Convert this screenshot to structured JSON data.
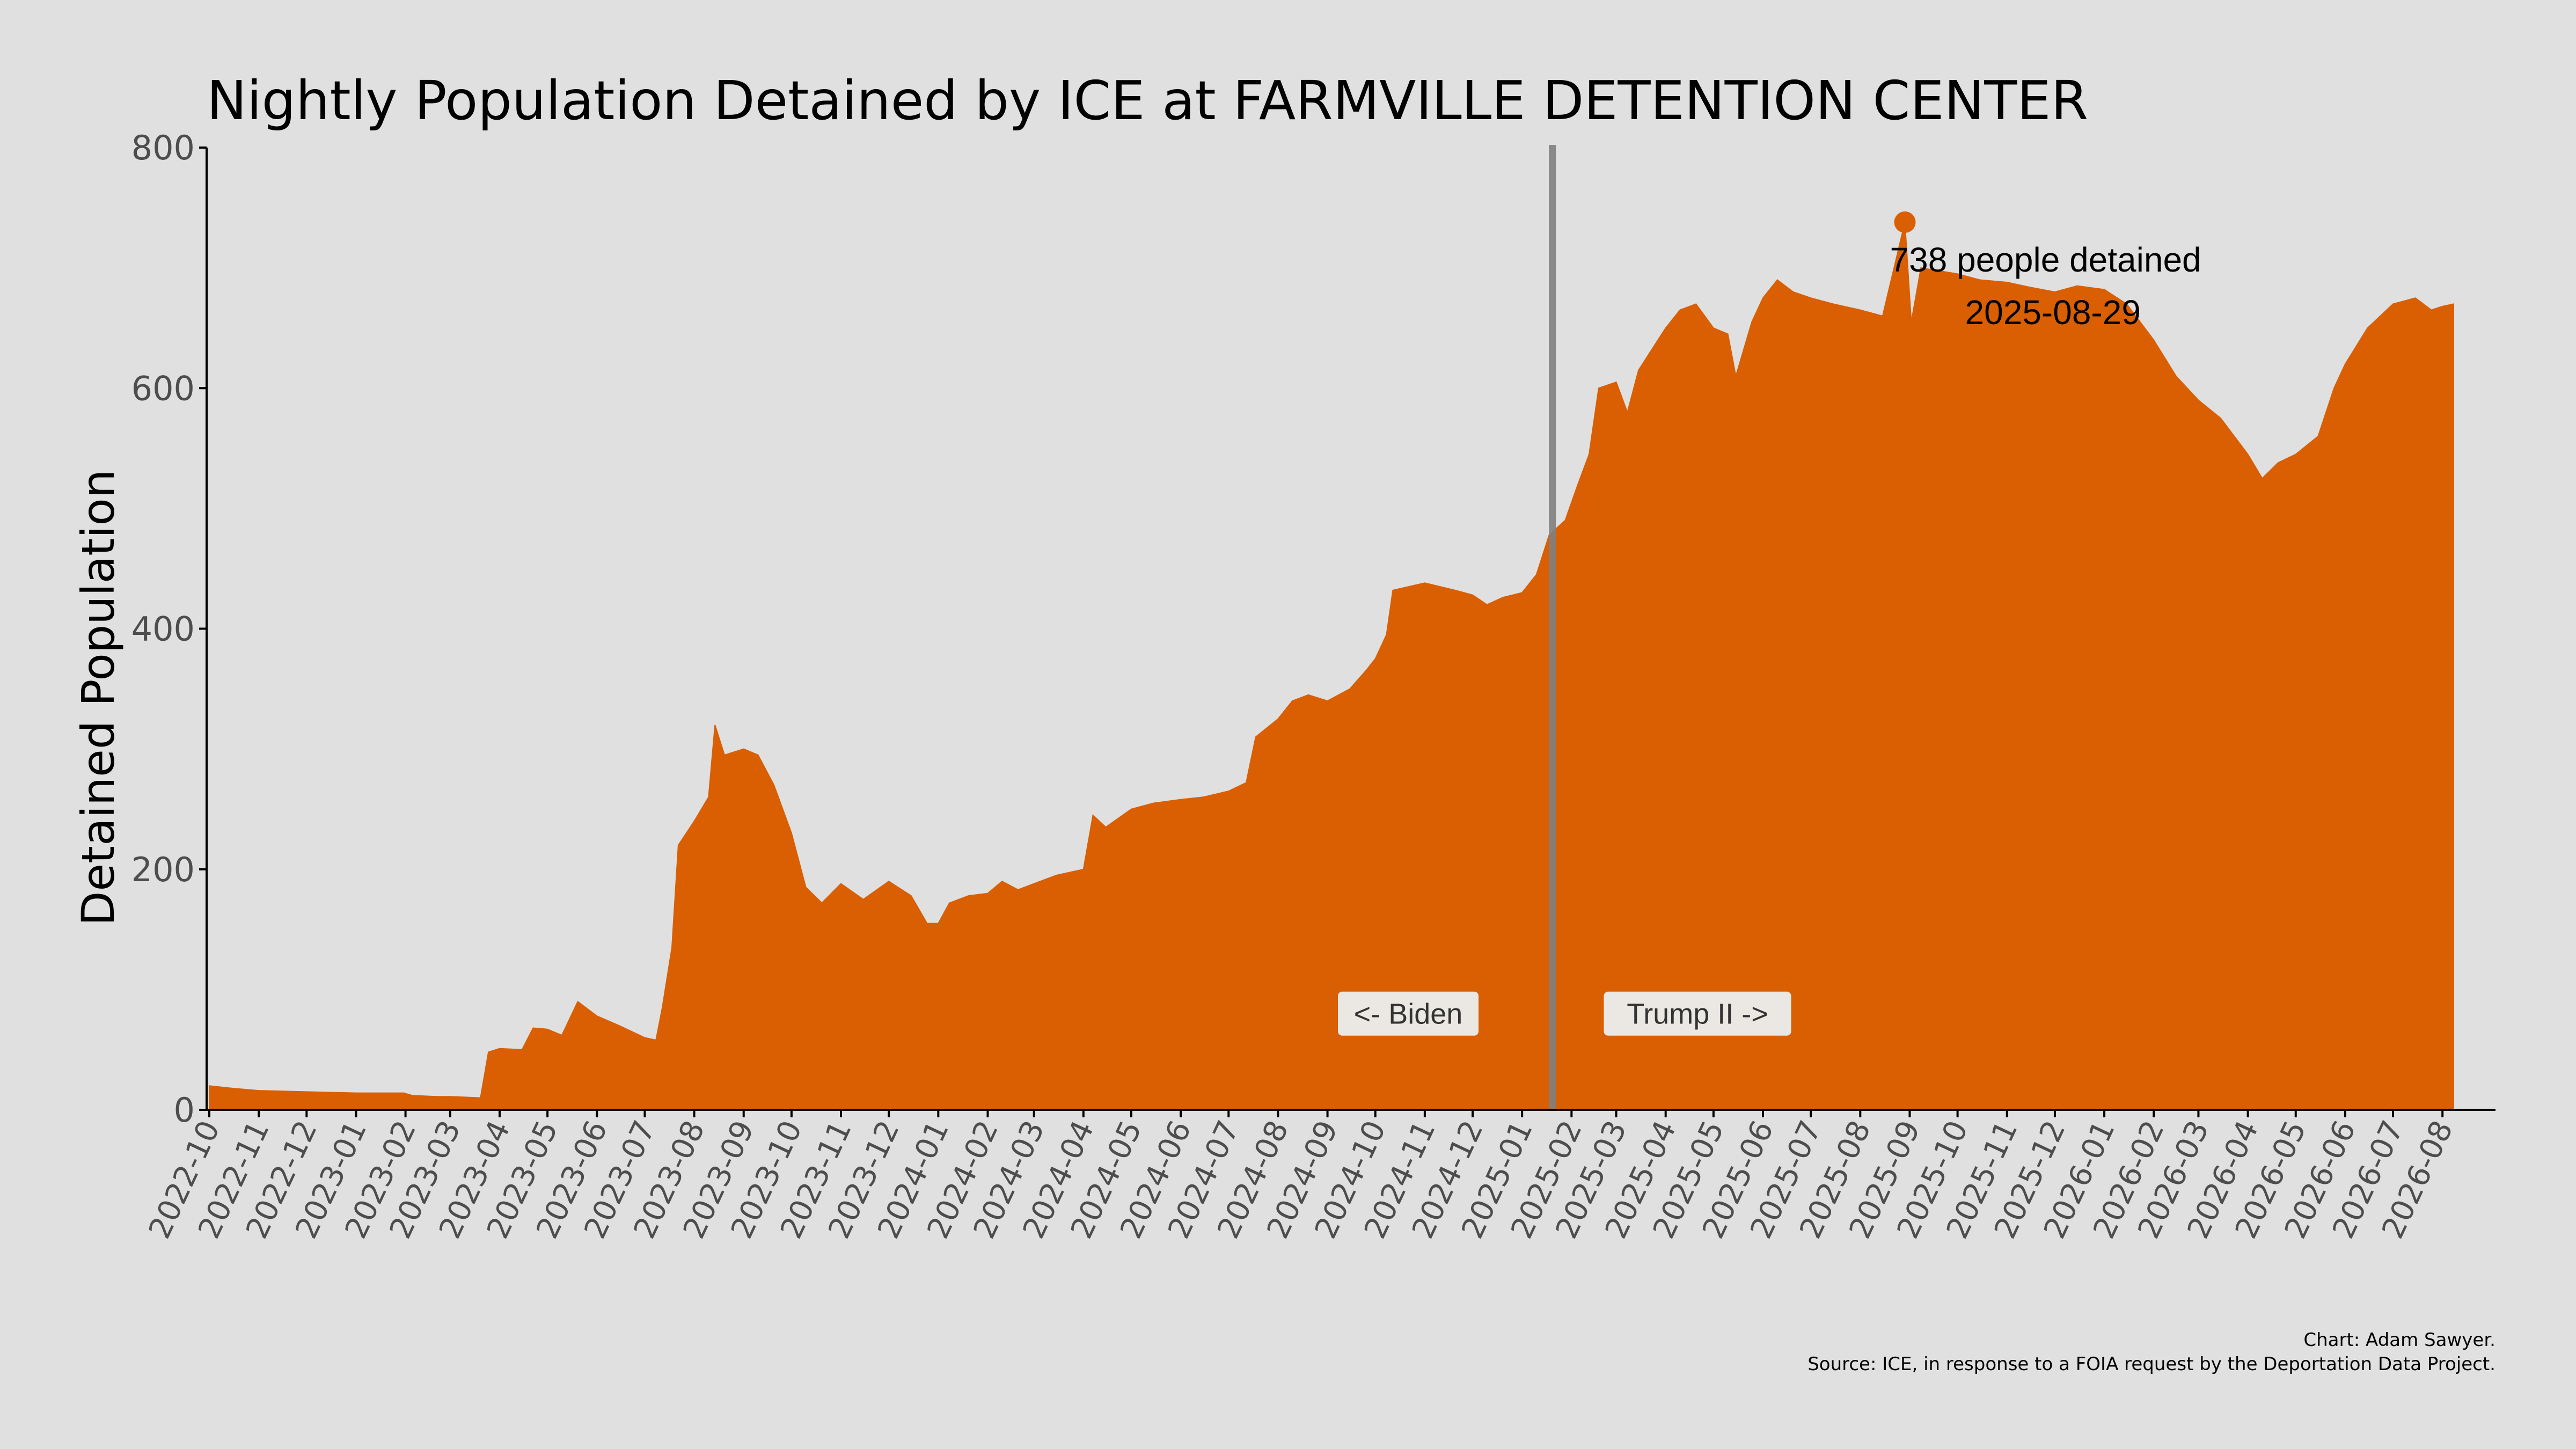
{
  "chart_data": {
    "type": "area",
    "title": "Nightly Population Detained by ICE at FARMVILLE DETENTION CENTER",
    "xlabel": "",
    "ylabel": "Detained Population",
    "ylim": [
      0,
      800
    ],
    "yticks": [
      0,
      200,
      400,
      600,
      800
    ],
    "xlim": [
      "2022-10-01",
      "2026-08-08"
    ],
    "xtick_labels": [
      "2022-10",
      "2022-11",
      "2022-12",
      "2023-01",
      "2023-02",
      "2023-03",
      "2023-04",
      "2023-05",
      "2023-06",
      "2023-07",
      "2023-08",
      "2023-09",
      "2023-10",
      "2023-11",
      "2023-12",
      "2024-01",
      "2024-02",
      "2024-03",
      "2024-04",
      "2024-05",
      "2024-06",
      "2024-07",
      "2024-08",
      "2024-09",
      "2024-10",
      "2024-11",
      "2024-12",
      "2025-01",
      "2025-02",
      "2025-03",
      "2025-04",
      "2025-05",
      "2025-06",
      "2025-07",
      "2025-08",
      "2025-09",
      "2025-10",
      "2025-11",
      "2025-12",
      "2026-01",
      "2026-02",
      "2026-03",
      "2026-04",
      "2026-05",
      "2026-06",
      "2026-07",
      "2026-08"
    ],
    "fill_color": "#d95f02",
    "grid": false,
    "series": [
      {
        "values": [
          [
            "2022-10-01",
            20
          ],
          [
            "2022-10-15",
            18
          ],
          [
            "2022-11-01",
            16
          ],
          [
            "2022-12-01",
            15
          ],
          [
            "2023-01-01",
            14
          ],
          [
            "2023-01-31",
            14
          ],
          [
            "2023-02-05",
            12
          ],
          [
            "2023-02-20",
            11
          ],
          [
            "2023-03-01",
            11
          ],
          [
            "2023-03-20",
            10
          ],
          [
            "2023-03-25",
            48
          ],
          [
            "2023-04-01",
            51
          ],
          [
            "2023-04-15",
            50
          ],
          [
            "2023-04-22",
            68
          ],
          [
            "2023-05-01",
            67
          ],
          [
            "2023-05-10",
            62
          ],
          [
            "2023-05-20",
            90
          ],
          [
            "2023-06-01",
            78
          ],
          [
            "2023-06-15",
            70
          ],
          [
            "2023-07-01",
            60
          ],
          [
            "2023-07-08",
            58
          ],
          [
            "2023-07-12",
            85
          ],
          [
            "2023-07-18",
            135
          ],
          [
            "2023-07-22",
            220
          ],
          [
            "2023-08-01",
            240
          ],
          [
            "2023-08-10",
            260
          ],
          [
            "2023-08-14",
            320
          ],
          [
            "2023-08-20",
            295
          ],
          [
            "2023-09-01",
            300
          ],
          [
            "2023-09-10",
            295
          ],
          [
            "2023-09-20",
            270
          ],
          [
            "2023-10-01",
            230
          ],
          [
            "2023-10-10",
            185
          ],
          [
            "2023-10-20",
            172
          ],
          [
            "2023-11-01",
            188
          ],
          [
            "2023-11-15",
            175
          ],
          [
            "2023-12-01",
            190
          ],
          [
            "2023-12-15",
            178
          ],
          [
            "2023-12-25",
            155
          ],
          [
            "2024-01-01",
            155
          ],
          [
            "2024-01-08",
            172
          ],
          [
            "2024-01-20",
            178
          ],
          [
            "2024-02-01",
            180
          ],
          [
            "2024-02-10",
            190
          ],
          [
            "2024-02-20",
            183
          ],
          [
            "2024-03-01",
            188
          ],
          [
            "2024-03-15",
            195
          ],
          [
            "2024-04-01",
            200
          ],
          [
            "2024-04-07",
            245
          ],
          [
            "2024-04-15",
            235
          ],
          [
            "2024-05-01",
            250
          ],
          [
            "2024-05-15",
            255
          ],
          [
            "2024-06-01",
            258
          ],
          [
            "2024-06-15",
            260
          ],
          [
            "2024-07-01",
            265
          ],
          [
            "2024-07-12",
            272
          ],
          [
            "2024-07-18",
            310
          ],
          [
            "2024-08-01",
            325
          ],
          [
            "2024-08-10",
            340
          ],
          [
            "2024-08-20",
            345
          ],
          [
            "2024-09-01",
            340
          ],
          [
            "2024-09-15",
            350
          ],
          [
            "2024-09-25",
            365
          ],
          [
            "2024-10-01",
            375
          ],
          [
            "2024-10-08",
            395
          ],
          [
            "2024-10-12",
            432
          ],
          [
            "2024-11-01",
            438
          ],
          [
            "2024-11-20",
            432
          ],
          [
            "2024-12-01",
            428
          ],
          [
            "2024-12-10",
            420
          ],
          [
            "2024-12-20",
            426
          ],
          [
            "2025-01-01",
            430
          ],
          [
            "2025-01-10",
            445
          ],
          [
            "2025-01-18",
            478
          ],
          [
            "2025-01-28",
            490
          ],
          [
            "2025-02-05",
            520
          ],
          [
            "2025-02-12",
            545
          ],
          [
            "2025-02-18",
            600
          ],
          [
            "2025-03-01",
            605
          ],
          [
            "2025-03-08",
            580
          ],
          [
            "2025-03-15",
            615
          ],
          [
            "2025-04-01",
            650
          ],
          [
            "2025-04-10",
            665
          ],
          [
            "2025-04-20",
            670
          ],
          [
            "2025-05-01",
            650
          ],
          [
            "2025-05-10",
            645
          ],
          [
            "2025-05-15",
            610
          ],
          [
            "2025-05-25",
            655
          ],
          [
            "2025-06-01",
            675
          ],
          [
            "2025-06-10",
            690
          ],
          [
            "2025-06-20",
            680
          ],
          [
            "2025-07-01",
            675
          ],
          [
            "2025-07-15",
            670
          ],
          [
            "2025-08-01",
            665
          ],
          [
            "2025-08-15",
            660
          ],
          [
            "2025-08-29",
            738
          ],
          [
            "2025-09-02",
            655
          ],
          [
            "2025-09-08",
            700
          ],
          [
            "2025-10-01",
            695
          ],
          [
            "2025-10-15",
            690
          ],
          [
            "2025-11-01",
            688
          ],
          [
            "2025-11-15",
            684
          ],
          [
            "2025-12-01",
            680
          ],
          [
            "2025-12-15",
            685
          ],
          [
            "2026-01-01",
            682
          ],
          [
            "2026-01-15",
            670
          ],
          [
            "2026-02-01",
            640
          ],
          [
            "2026-02-15",
            610
          ],
          [
            "2026-03-01",
            590
          ],
          [
            "2026-03-15",
            575
          ],
          [
            "2026-04-01",
            545
          ],
          [
            "2026-04-10",
            525
          ],
          [
            "2026-04-20",
            538
          ],
          [
            "2026-05-01",
            545
          ],
          [
            "2026-05-15",
            560
          ],
          [
            "2026-05-25",
            600
          ],
          [
            "2026-06-01",
            620
          ],
          [
            "2026-06-15",
            650
          ],
          [
            "2026-07-01",
            670
          ],
          [
            "2026-07-15",
            675
          ],
          [
            "2026-07-25",
            665
          ],
          [
            "2026-08-01",
            668
          ],
          [
            "2026-08-08",
            670
          ]
        ]
      }
    ],
    "vertical_line": {
      "x": "2025-01-20",
      "color": "#808080"
    },
    "labels": {
      "left": "<- Biden",
      "right": "Trump II ->",
      "y": 80
    },
    "peak": {
      "x": "2025-08-29",
      "y": 738,
      "line1": "738 people detained",
      "line2": "2025-08-29"
    },
    "caption": [
      "Chart: Adam Sawyer.",
      "Source: ICE, in response to a FOIA request by the Deportation Data Project."
    ]
  }
}
